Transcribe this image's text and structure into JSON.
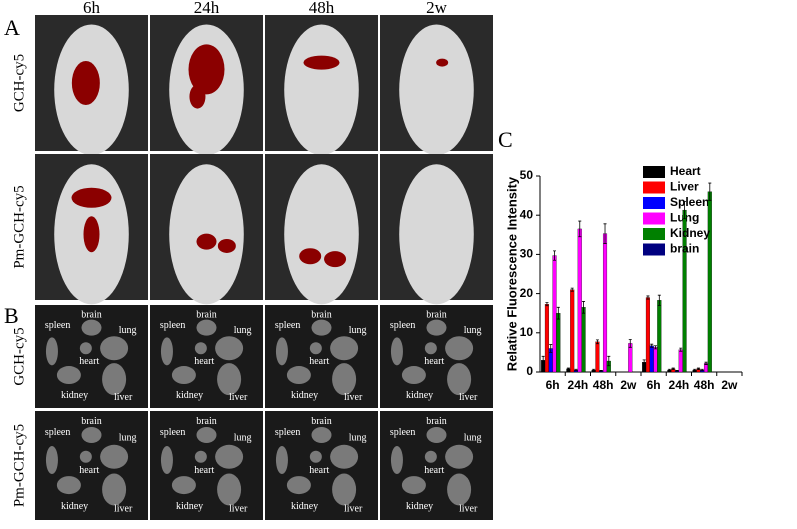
{
  "panel_labels": [
    "A",
    "B",
    "C"
  ],
  "timepoints": [
    "6h",
    "24h",
    "48h",
    "2w"
  ],
  "groups": [
    "GCH-cy5",
    "Pm-GCH-cy5"
  ],
  "organs": [
    "spleen",
    "brain",
    "lung",
    "heart",
    "kidney",
    "liver"
  ],
  "chart_data": {
    "type": "bar",
    "ylabel": "Relative Fluorescence Intensity",
    "categories": [
      "6h",
      "24h",
      "48h",
      "2w",
      "6h",
      "24h",
      "48h",
      "2w"
    ],
    "series": [
      {
        "name": "Heart",
        "color": "#000000",
        "values": [
          3,
          0.8,
          0.5,
          0,
          2.5,
          0.5,
          0.5,
          0
        ],
        "errors": [
          1,
          0.2,
          0.2,
          0,
          0.6,
          0.2,
          0.2,
          0
        ]
      },
      {
        "name": "Liver",
        "color": "#ff0000",
        "values": [
          17.3,
          21,
          7.7,
          0,
          19,
          0.8,
          0.8,
          0
        ],
        "errors": [
          0.4,
          0.4,
          0.5,
          0,
          0.4,
          0.2,
          0.2,
          0
        ]
      },
      {
        "name": "Spleen",
        "color": "#0000ff",
        "values": [
          6,
          0.5,
          0.3,
          0,
          6.7,
          0.3,
          0.5,
          0
        ],
        "errors": [
          1,
          0.2,
          0.1,
          0,
          0.4,
          0.1,
          0.2,
          0
        ]
      },
      {
        "name": "Lung",
        "color": "#ff00ff",
        "values": [
          29.7,
          36.5,
          35.3,
          7.3,
          6.3,
          5.7,
          2.2,
          0
        ],
        "errors": [
          1.2,
          2,
          2.5,
          1,
          0.4,
          0.4,
          0.3,
          0
        ]
      },
      {
        "name": "Kidney",
        "color": "#008000",
        "values": [
          15,
          16.5,
          2.8,
          0,
          18.3,
          41.3,
          46,
          0
        ],
        "errors": [
          1.5,
          1.5,
          1.2,
          0,
          1.3,
          2.2,
          2.2,
          0
        ]
      },
      {
        "name": "brain",
        "color": "#000080",
        "values": [
          0,
          0,
          0,
          0,
          0,
          0,
          0,
          0
        ],
        "errors": [
          0,
          0,
          0,
          0,
          0,
          0,
          0,
          0
        ]
      }
    ],
    "ylim": [
      0,
      50
    ],
    "yticks": [
      0,
      10,
      20,
      30,
      40,
      50
    ],
    "legend": "top-right"
  }
}
